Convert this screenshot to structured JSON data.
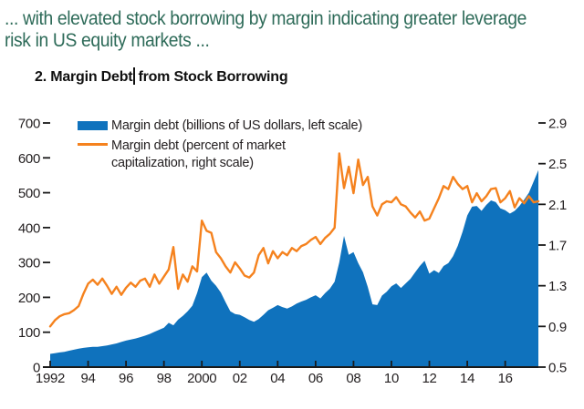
{
  "page": {
    "heading_line1": "... with elevated stock borrowing by margin indicating greater leverage",
    "heading_line2": "risk in US equity markets ...",
    "figure_title_before_caret": "2. Margin Debt",
    "figure_title_after_caret": "from Stock Borrowing"
  },
  "colors": {
    "heading_green": "#2e6b59",
    "margin_debt_blue": "#0f72bd",
    "percent_cap_orange": "#f5821e",
    "axis_ink": "#231f20"
  },
  "chart_data": {
    "type": "area",
    "title": "2. Margin Debt from Stock Borrowing",
    "xlabel": "",
    "ylabel_left": "Margin debt (billions of US dollars)",
    "ylabel_right": "Margin debt (percent of market capitalization)",
    "x_start": 1992.0,
    "x_step": 0.25,
    "x_end": 2017.75,
    "grid": false,
    "axis_color": "#1a1a1a",
    "left_axis": {
      "min": 0,
      "max": 700,
      "ticks": [
        0,
        100,
        200,
        300,
        400,
        500,
        600,
        700
      ]
    },
    "right_axis": {
      "min": 0.5,
      "max": 2.9,
      "ticks": [
        0.5,
        0.9,
        1.3,
        1.7,
        2.1,
        2.5,
        2.9
      ]
    },
    "x_ticks": {
      "positions": [
        1992,
        1994,
        1996,
        1998,
        2000,
        2002,
        2004,
        2006,
        2008,
        2010,
        2012,
        2014,
        2016
      ],
      "labels": [
        "1992",
        "94",
        "96",
        "98",
        "2000",
        "02",
        "04",
        "06",
        "08",
        "10",
        "12",
        "14",
        "16"
      ]
    },
    "legend": {
      "position": "top-left-inside",
      "entries": [
        {
          "name": "Margin debt (billions of US dollars, left scale)",
          "swatch": "filled-rect",
          "lines": [
            "Margin debt (billions of US dollars, left scale)"
          ]
        },
        {
          "name": "Margin debt (percent of market capitalization, right scale)",
          "swatch": "line",
          "lines": [
            "Margin debt (percent of market",
            "capitalization, right scale)"
          ]
        }
      ]
    },
    "series": [
      {
        "name": "Margin debt (billions of US dollars, left scale)",
        "type": "area",
        "axis": "left",
        "color": "#0f72bd",
        "values": [
          38,
          40,
          42,
          44,
          47,
          50,
          53,
          55,
          57,
          58,
          58,
          60,
          62,
          65,
          68,
          72,
          76,
          79,
          82,
          86,
          90,
          95,
          101,
          107,
          113,
          127,
          120,
          136,
          147,
          160,
          176,
          212,
          258,
          271,
          248,
          233,
          214,
          186,
          160,
          152,
          150,
          143,
          135,
          130,
          138,
          150,
          163,
          170,
          178,
          172,
          168,
          174,
          182,
          188,
          193,
          200,
          206,
          197,
          212,
          225,
          245,
          300,
          376,
          322,
          330,
          298,
          272,
          230,
          180,
          178,
          205,
          216,
          232,
          240,
          227,
          240,
          253,
          272,
          290,
          305,
          268,
          278,
          270,
          290,
          298,
          318,
          348,
          388,
          435,
          460,
          462,
          448,
          465,
          478,
          473,
          455,
          450,
          440,
          448,
          462,
          480,
          500,
          532,
          565
        ]
      },
      {
        "name": "Margin debt (percent of market capitalization, right scale)",
        "type": "line",
        "axis": "right",
        "color": "#f5821e",
        "values": [
          0.9,
          0.96,
          1.0,
          1.02,
          1.03,
          1.06,
          1.1,
          1.22,
          1.32,
          1.36,
          1.31,
          1.37,
          1.3,
          1.22,
          1.29,
          1.21,
          1.28,
          1.33,
          1.29,
          1.35,
          1.37,
          1.29,
          1.41,
          1.32,
          1.39,
          1.46,
          1.68,
          1.27,
          1.41,
          1.34,
          1.49,
          1.44,
          1.94,
          1.84,
          1.82,
          1.63,
          1.57,
          1.49,
          1.43,
          1.53,
          1.47,
          1.4,
          1.38,
          1.43,
          1.6,
          1.67,
          1.52,
          1.64,
          1.57,
          1.63,
          1.6,
          1.67,
          1.64,
          1.69,
          1.71,
          1.75,
          1.78,
          1.71,
          1.77,
          1.81,
          1.87,
          2.6,
          2.26,
          2.47,
          2.21,
          2.54,
          2.29,
          2.37,
          2.08,
          1.99,
          2.1,
          2.13,
          2.12,
          2.17,
          2.1,
          2.08,
          2.02,
          1.97,
          2.03,
          1.94,
          1.96,
          2.06,
          2.16,
          2.28,
          2.25,
          2.37,
          2.3,
          2.25,
          2.28,
          2.12,
          2.21,
          2.13,
          2.18,
          2.25,
          2.26,
          2.12,
          2.16,
          2.23,
          2.07,
          2.16,
          2.11,
          2.18,
          2.12,
          2.13
        ]
      }
    ]
  }
}
